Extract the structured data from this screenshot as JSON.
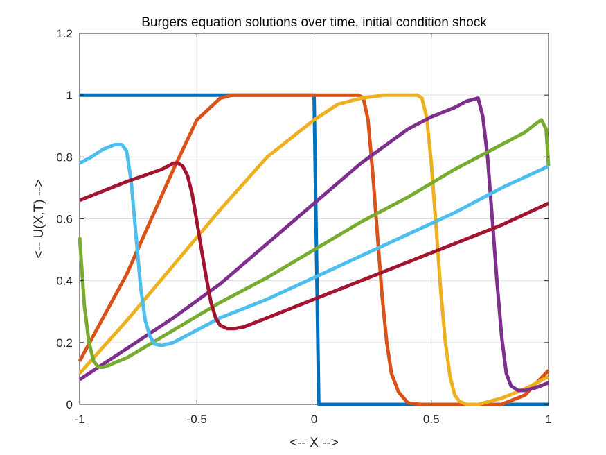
{
  "chart_data": {
    "type": "line",
    "title": "Burgers equation solutions over time, initial condition shock",
    "xlabel": "<-- X -->",
    "ylabel": "<-- U(X,T) -->",
    "xlim": [
      -1,
      1
    ],
    "ylim": [
      0,
      1.2
    ],
    "xticks": [
      -1,
      -0.5,
      0,
      0.5,
      1
    ],
    "xtick_labels": [
      "-1",
      "-0.5",
      "0",
      "0.5",
      "1"
    ],
    "yticks": [
      0,
      0.2,
      0.4,
      0.6,
      0.8,
      1,
      1.2
    ],
    "ytick_labels": [
      "0",
      "0.2",
      "0.4",
      "0.6",
      "0.8",
      "1",
      "1.2"
    ],
    "grid": true,
    "series": [
      {
        "color": "#0072BD",
        "x": [
          -1,
          0.0,
          0.02,
          1
        ],
        "y": [
          1,
          1,
          0,
          0
        ]
      },
      {
        "color": "#D95319",
        "x": [
          -1,
          -0.8,
          -0.6,
          -0.5,
          -0.4,
          -0.35,
          -0.3,
          -0.2,
          0.0,
          0.15,
          0.19,
          0.21,
          0.23,
          0.25,
          0.27,
          0.29,
          0.31,
          0.33,
          0.36,
          0.4,
          0.45,
          0.6,
          0.8,
          0.9,
          1.0
        ],
        "y": [
          0.14,
          0.42,
          0.76,
          0.92,
          0.99,
          1.0,
          1.0,
          1.0,
          1.0,
          1.0,
          1.0,
          0.99,
          0.92,
          0.75,
          0.55,
          0.35,
          0.2,
          0.1,
          0.04,
          0.005,
          0.0,
          0.0,
          0.0,
          0.03,
          0.11
        ]
      },
      {
        "color": "#EDB120",
        "x": [
          -1,
          -0.8,
          -0.6,
          -0.4,
          -0.2,
          0.0,
          0.1,
          0.2,
          0.3,
          0.4,
          0.44,
          0.46,
          0.48,
          0.5,
          0.52,
          0.54,
          0.56,
          0.58,
          0.6,
          0.62,
          0.65,
          0.7,
          0.8,
          0.9,
          1.0
        ],
        "y": [
          0.1,
          0.27,
          0.45,
          0.63,
          0.8,
          0.92,
          0.97,
          0.99,
          1.0,
          1.0,
          1.0,
          0.99,
          0.93,
          0.78,
          0.58,
          0.37,
          0.2,
          0.09,
          0.03,
          0.01,
          0.0,
          0.0,
          0.02,
          0.05,
          0.09
        ]
      },
      {
        "color": "#7E2F8E",
        "x": [
          -1,
          -0.8,
          -0.6,
          -0.4,
          -0.2,
          0.0,
          0.2,
          0.4,
          0.5,
          0.6,
          0.65,
          0.7,
          0.72,
          0.74,
          0.76,
          0.78,
          0.8,
          0.82,
          0.84,
          0.87,
          0.9,
          0.95,
          1.0
        ],
        "y": [
          0.08,
          0.18,
          0.28,
          0.39,
          0.52,
          0.65,
          0.78,
          0.89,
          0.93,
          0.96,
          0.98,
          0.99,
          0.93,
          0.8,
          0.6,
          0.4,
          0.22,
          0.1,
          0.06,
          0.045,
          0.045,
          0.055,
          0.07
        ]
      },
      {
        "color": "#77AC30",
        "x": [
          -1,
          -0.98,
          -0.96,
          -0.94,
          -0.92,
          -0.9,
          -0.88,
          -0.85,
          -0.8,
          -0.6,
          -0.4,
          -0.2,
          0.0,
          0.2,
          0.4,
          0.6,
          0.8,
          0.9,
          0.95,
          0.97,
          0.99,
          1.0
        ],
        "y": [
          0.54,
          0.32,
          0.2,
          0.14,
          0.12,
          0.12,
          0.125,
          0.135,
          0.15,
          0.24,
          0.33,
          0.41,
          0.5,
          0.59,
          0.67,
          0.76,
          0.84,
          0.88,
          0.91,
          0.92,
          0.89,
          0.77
        ]
      },
      {
        "color": "#4DBEEE",
        "x": [
          -1,
          -0.95,
          -0.9,
          -0.85,
          -0.82,
          -0.8,
          -0.78,
          -0.76,
          -0.74,
          -0.72,
          -0.7,
          -0.68,
          -0.65,
          -0.6,
          -0.5,
          -0.4,
          -0.2,
          0.0,
          0.2,
          0.4,
          0.6,
          0.8,
          1.0
        ],
        "y": [
          0.78,
          0.8,
          0.825,
          0.84,
          0.84,
          0.82,
          0.72,
          0.55,
          0.38,
          0.27,
          0.22,
          0.195,
          0.19,
          0.2,
          0.24,
          0.28,
          0.34,
          0.41,
          0.48,
          0.55,
          0.62,
          0.7,
          0.77
        ]
      },
      {
        "color": "#A2142F",
        "x": [
          -1,
          -0.8,
          -0.65,
          -0.6,
          -0.58,
          -0.56,
          -0.54,
          -0.52,
          -0.5,
          -0.48,
          -0.46,
          -0.44,
          -0.42,
          -0.4,
          -0.37,
          -0.34,
          -0.3,
          -0.2,
          0.0,
          0.2,
          0.4,
          0.6,
          0.8,
          1.0
        ],
        "y": [
          0.66,
          0.72,
          0.76,
          0.78,
          0.78,
          0.77,
          0.74,
          0.68,
          0.59,
          0.5,
          0.41,
          0.33,
          0.28,
          0.255,
          0.245,
          0.245,
          0.25,
          0.28,
          0.34,
          0.4,
          0.46,
          0.52,
          0.58,
          0.65
        ]
      }
    ]
  }
}
